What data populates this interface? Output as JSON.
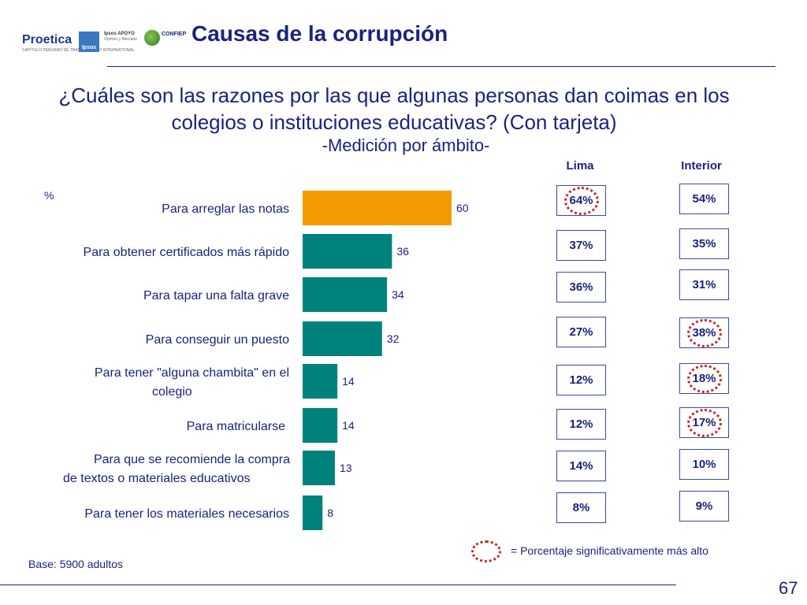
{
  "header": {
    "logos": {
      "proetica": "Proetica",
      "proetica_sub": "CAPÍTULO PERUANO DE TRANSPARENCY INTERNATIONAL",
      "ipsos": "Ipsos",
      "apoyo": "Ipsos APOYO",
      "apoyo_sub": "Opinión y Mercado",
      "confiep": "CONFIEP"
    },
    "title": "Causas de la corrupción"
  },
  "question": {
    "line1": "¿Cuáles son las razones por las que algunas personas dan coimas en los",
    "line2": "colegios o instituciones educativas? (Con tarjeta)",
    "sub": "-Medición por ámbito-"
  },
  "columns": {
    "lima": "Lima",
    "interior": "Interior"
  },
  "chart_data": {
    "type": "bar",
    "orientation": "horizontal",
    "unit_label": "%",
    "categories": [
      "Para arreglar las notas",
      "Para obtener certificados más rápido",
      "Para tapar una falta grave",
      "Para conseguir un puesto",
      "Para tener \"alguna chambita\" en el colegio",
      "Para matricularse",
      "Para que se recomiende la compra de textos o materiales educativos",
      "Para tener los materiales necesarios"
    ],
    "values": [
      60,
      36,
      34,
      32,
      14,
      14,
      13,
      8
    ],
    "highlight_index": 0,
    "colors": {
      "highlight": "#f59a00",
      "default": "#00827c"
    },
    "lima": [
      "64%",
      "37%",
      "36%",
      "27%",
      "12%",
      "12%",
      "14%",
      "8%"
    ],
    "interior": [
      "54%",
      "35%",
      "31%",
      "38%",
      "18%",
      "17%",
      "10%",
      "9%"
    ],
    "lima_significant": [
      true,
      false,
      false,
      false,
      false,
      false,
      false,
      false
    ],
    "interior_significant": [
      false,
      false,
      false,
      true,
      true,
      true,
      false,
      false
    ]
  },
  "legend": {
    "significant": "= Porcentaje significativamente más alto",
    "marker_color": "#c62828"
  },
  "footer": {
    "base": "Base: 5900 adultos",
    "page_number": "67"
  }
}
